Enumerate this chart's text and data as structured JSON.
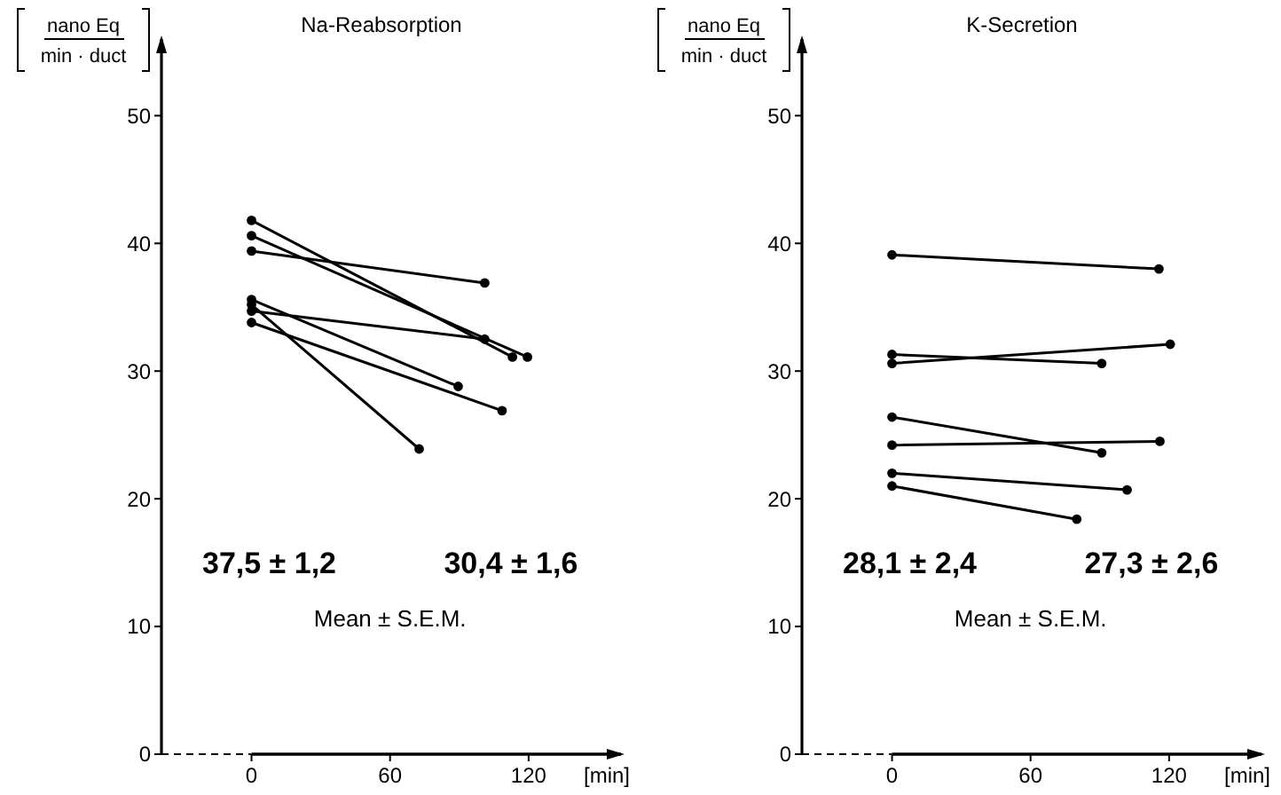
{
  "chart_data": [
    {
      "type": "line",
      "title": "Na-Reabsorption",
      "ylabel": "nano Eq min · duct",
      "xlabel": "[min]",
      "xlim": [
        -39,
        160
      ],
      "ylim": [
        0,
        56
      ],
      "xticks": [
        0,
        60,
        120
      ],
      "yticks": [
        0,
        10,
        20,
        30,
        40,
        50
      ],
      "grid": false,
      "marker": "circle",
      "annotations": [
        "37,5 ± 1,2",
        "30,4 ± 1,6",
        "Mean ± S.E.M."
      ],
      "series": [
        {
          "color": "#000000",
          "x": [
            0,
            113
          ],
          "values": [
            41.8,
            31.1
          ]
        },
        {
          "color": "#000000",
          "x": [
            0,
            119.5
          ],
          "values": [
            40.6,
            31.1
          ]
        },
        {
          "color": "#000000",
          "x": [
            0,
            101
          ],
          "values": [
            39.4,
            36.9
          ]
        },
        {
          "color": "#000000",
          "x": [
            0,
            89.5
          ],
          "values": [
            35.6,
            28.8
          ]
        },
        {
          "color": "#000000",
          "x": [
            0,
            72.6
          ],
          "values": [
            35.2,
            23.9
          ]
        },
        {
          "color": "#000000",
          "x": [
            0,
            101
          ],
          "values": [
            34.7,
            32.5
          ]
        },
        {
          "color": "#000000",
          "x": [
            0,
            108.5
          ],
          "values": [
            33.8,
            26.9
          ]
        }
      ]
    },
    {
      "type": "line",
      "title": "K-Secretion",
      "ylabel": "nano Eq min · duct",
      "xlabel": "[min]",
      "xlim": [
        -39,
        160
      ],
      "ylim": [
        0,
        56
      ],
      "xticks": [
        0,
        60,
        120
      ],
      "yticks": [
        0,
        10,
        20,
        30,
        40,
        50
      ],
      "grid": false,
      "marker": "circle",
      "annotations": [
        "28,1 ± 2,4",
        "27,3 ± 2,6",
        "Mean ± S.E.M."
      ],
      "series": [
        {
          "color": "#000000",
          "x": [
            0,
            115.6
          ],
          "values": [
            39.1,
            38.0
          ]
        },
        {
          "color": "#000000",
          "x": [
            0,
            90.8
          ],
          "values": [
            31.3,
            30.6
          ]
        },
        {
          "color": "#000000",
          "x": [
            0,
            120.5
          ],
          "values": [
            30.6,
            32.1
          ]
        },
        {
          "color": "#000000",
          "x": [
            0,
            90.8
          ],
          "values": [
            26.4,
            23.6
          ]
        },
        {
          "color": "#000000",
          "x": [
            0,
            116
          ],
          "values": [
            24.2,
            24.5
          ]
        },
        {
          "color": "#000000",
          "x": [
            0,
            101.8
          ],
          "values": [
            22.0,
            20.7
          ]
        },
        {
          "color": "#000000",
          "x": [
            0,
            80
          ],
          "values": [
            21.0,
            18.4
          ]
        }
      ]
    }
  ]
}
